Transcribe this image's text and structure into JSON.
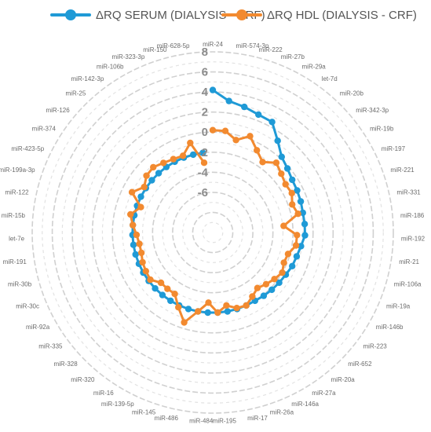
{
  "chart_data": {
    "type": "radar",
    "categories": [
      "miR-24",
      "miR-574-3p",
      "miR-222",
      "miR-27b",
      "miR-29a",
      "let-7d",
      "miR-20b",
      "miR-342-3p",
      "miR-19b",
      "miR-197",
      "miR-221",
      "miR-331",
      "miR-186",
      "miR-192",
      "miR-21",
      "miR-106a",
      "miR-19a",
      "miR-146b",
      "miR-223",
      "miR-652",
      "miR-20a",
      "miR-27a",
      "miR-146a",
      "miR-26a",
      "miR-17",
      "miR-195",
      "miR-484",
      "miR-486",
      "miR-145",
      "miR-139-5p",
      "miR-16",
      "miR-320",
      "miR-328",
      "miR-335",
      "miR-92a",
      "miR-30c",
      "miR-30b",
      "miR-191",
      "let-7e",
      "miR-15b",
      "miR-122",
      "miR-199a-3p",
      "miR-423-5p",
      "miR-374",
      "miR-126",
      "miR-25",
      "miR-142-3p",
      "miR-106b",
      "miR-323-3p",
      "miR-150",
      "miR-628-5p"
    ],
    "series": [
      {
        "name": "ΔRQ SERUM (DIALYSIS - CRF)",
        "color": "#1f9ad6",
        "values": [
          4.2,
          3.2,
          2.9,
          2.6,
          2.5,
          1.2,
          0.2,
          -0.2,
          -0.5,
          -0.6,
          -0.7,
          -0.8,
          -0.8,
          -0.8,
          -1.1,
          -1.3,
          -1.4,
          -1.6,
          -1.7,
          -1.8,
          -1.9,
          -2.0,
          -2.0,
          -2.0,
          -2.0,
          -2.0,
          -2.0,
          -2.0,
          -2.0,
          -2.0,
          -2.0,
          -2.0,
          -2.0,
          -2.0,
          -2.0,
          -2.0,
          -2.0,
          -2.0,
          -2.0,
          -2.0,
          -2.0,
          -2.0,
          -2.0,
          -2.0,
          -2.0,
          -2.0,
          -2.0,
          -2.0,
          -2.0,
          -2.0,
          -2.0
        ]
      },
      {
        "name": "ΔRQ HDL (DIALYSIS - CRF)",
        "color": "#f28a30",
        "values": [
          0.2,
          0.2,
          -0.5,
          0.3,
          -0.7,
          -1.4,
          -0.6,
          -1.0,
          -1.3,
          -1.2,
          -1.6,
          -1.3,
          -2.9,
          -1.6,
          -1.6,
          -2.2,
          -2.3,
          -2.0,
          -2.3,
          -2.6,
          -2.9,
          -2.5,
          -2.0,
          -2.1,
          -2.6,
          -2.0,
          -3.0,
          -2.0,
          -0.6,
          -1.8,
          -2.8,
          -2.8,
          -2.8,
          -2.2,
          -2.3,
          -2.4,
          -2.6,
          -2.6,
          -2.4,
          -2.0,
          -1.6,
          -2.4,
          -1.0,
          -1.8,
          -1.3,
          -1.2,
          -1.5,
          -1.7,
          -1.8,
          -0.8,
          -3.0
        ]
      }
    ],
    "radial_range": [
      -10,
      8
    ],
    "radial_ticks": [
      8,
      6,
      4,
      2,
      0,
      -2,
      -4,
      -6
    ],
    "tick_labels": [
      "8",
      "6",
      "4",
      "2",
      "0",
      "-2",
      "-4",
      "-6"
    ],
    "legend_position": "top",
    "grid": true
  }
}
